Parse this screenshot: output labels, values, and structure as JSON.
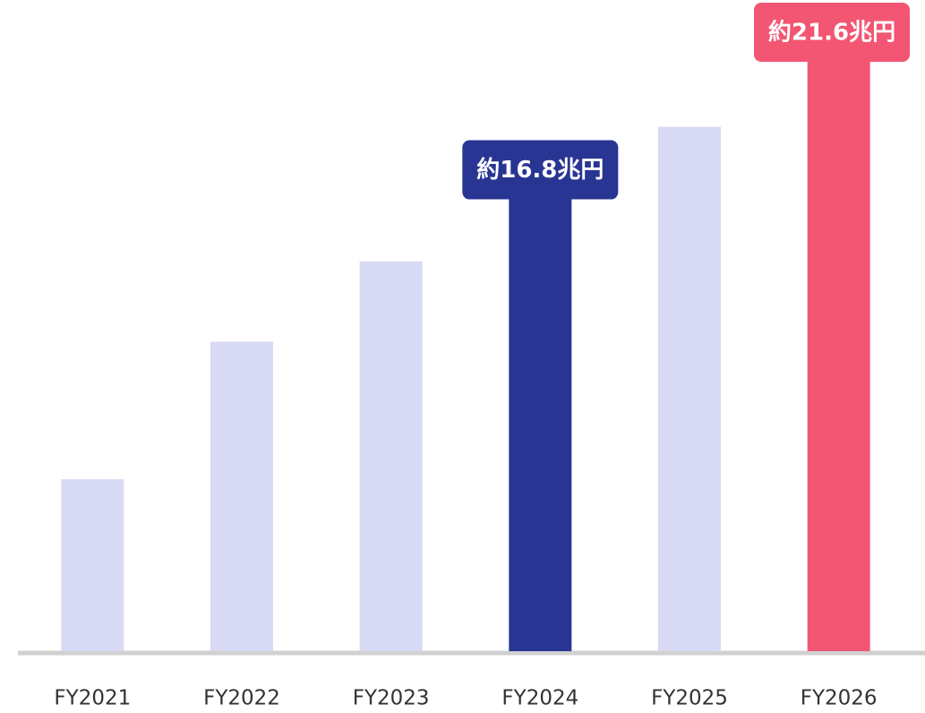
{
  "chart_data": {
    "type": "bar",
    "categories": [
      "FY2021",
      "FY2022",
      "FY2023",
      "FY2024",
      "FY2025",
      "FY2026"
    ],
    "values": [
      6.0,
      10.8,
      13.6,
      16.8,
      18.3,
      21.6
    ],
    "value_labels": [
      null,
      null,
      null,
      "約16.8兆円",
      null,
      "約21.6兆円"
    ],
    "colors": [
      "#d8d9f3",
      "#d8d9f3",
      "#d8d9f3",
      "#283593",
      "#d8d9f3",
      "#f25672"
    ]
  }
}
